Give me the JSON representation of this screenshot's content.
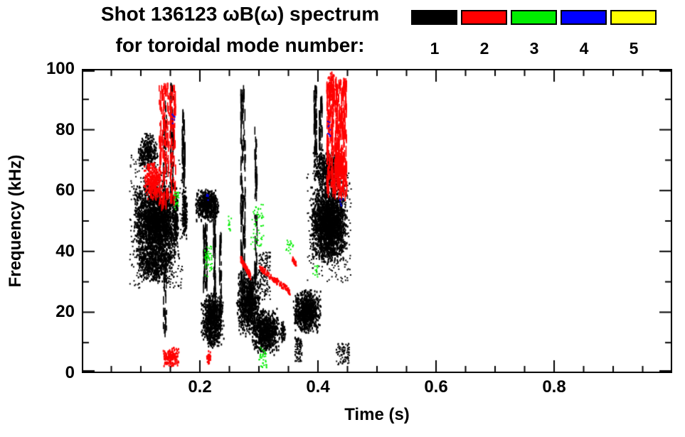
{
  "header": {
    "title_line1": "Shot 136123 ωB(ω) spectrum",
    "title_line2": "for toroidal mode number:"
  },
  "legend": {
    "items": [
      {
        "label": "1",
        "color": "#000000"
      },
      {
        "label": "2",
        "color": "#ff0000"
      },
      {
        "label": "3",
        "color": "#00ee00"
      },
      {
        "label": "4",
        "color": "#0000ff"
      },
      {
        "label": "5",
        "color": "#ffff00"
      }
    ]
  },
  "chart_data": {
    "type": "scatter",
    "title": "Shot 136123 ωB(ω) spectrum for toroidal mode number: 1 2 3 4 5",
    "xlabel": "Time (s)",
    "ylabel": "Frequency (kHz)",
    "xlim": [
      0,
      1
    ],
    "ylim": [
      0,
      100
    ],
    "xticks": [
      0.2,
      0.4,
      0.6,
      0.8
    ],
    "xtick_labels": [
      "0.2",
      "0.4",
      "0.6",
      "0.8"
    ],
    "yticks": [
      0,
      20,
      40,
      60,
      80,
      100
    ],
    "ytick_labels": [
      "0",
      "20",
      "40",
      "60",
      "80",
      "100"
    ],
    "x_minor_step": 0.05,
    "y_minor_step": 10,
    "grid": false,
    "legend_position": "top-right",
    "series": [
      {
        "name": "mode 1",
        "color": "#000000",
        "clusters": [
          {
            "t": [
              0.085,
              0.165
            ],
            "f": [
              36,
              64
            ],
            "n": 2400,
            "style": "blob"
          },
          {
            "t": [
              0.09,
              0.155
            ],
            "f": [
              30,
              42
            ],
            "n": 500,
            "style": "blob"
          },
          {
            "t": [
              0.08,
              0.17
            ],
            "f": [
              28,
              72
            ],
            "n": 350,
            "style": "sparse"
          },
          {
            "t": [
              0.093,
              0.128
            ],
            "f": [
              67,
              78
            ],
            "n": 260,
            "style": "blob"
          },
          {
            "t": [
              0.105,
              0.12
            ],
            "f": [
              76,
              79
            ],
            "n": 40,
            "style": "sparse"
          },
          {
            "t": [
              0.137,
              0.143
            ],
            "f": [
              10,
              88
            ],
            "n": 90,
            "style": "streak"
          },
          {
            "t": [
              0.149,
              0.154
            ],
            "f": [
              55,
              95
            ],
            "n": 70,
            "style": "streak"
          },
          {
            "t": [
              0.155,
              0.162
            ],
            "f": [
              40,
              60
            ],
            "n": 120,
            "style": "blob"
          },
          {
            "t": [
              0.168,
              0.178
            ],
            "f": [
              44,
              62
            ],
            "n": 160,
            "style": "blob"
          },
          {
            "t": [
              0.169,
              0.174
            ],
            "f": [
              62,
              86
            ],
            "n": 50,
            "style": "streak"
          },
          {
            "t": [
              0.19,
              0.232
            ],
            "f": [
              50,
              61
            ],
            "n": 550,
            "style": "blob"
          },
          {
            "t": [
              0.2,
              0.24
            ],
            "f": [
              8,
              27
            ],
            "n": 750,
            "style": "blob"
          },
          {
            "t": [
              0.205,
              0.212
            ],
            "f": [
              28,
              48
            ],
            "n": 60,
            "style": "streak"
          },
          {
            "t": [
              0.222,
              0.226
            ],
            "f": [
              18,
              58
            ],
            "n": 60,
            "style": "streak"
          },
          {
            "t": [
              0.232,
              0.236
            ],
            "f": [
              15,
              45
            ],
            "n": 40,
            "style": "streak"
          },
          {
            "t": [
              0.268,
              0.276
            ],
            "f": [
              25,
              93
            ],
            "n": 130,
            "style": "streak"
          },
          {
            "t": [
              0.26,
              0.302
            ],
            "f": [
              12,
              34
            ],
            "n": 850,
            "style": "blob"
          },
          {
            "t": [
              0.285,
              0.335
            ],
            "f": [
              6,
              22
            ],
            "n": 800,
            "style": "blob"
          },
          {
            "t": [
              0.292,
              0.296
            ],
            "f": [
              30,
              80
            ],
            "n": 60,
            "style": "streak"
          },
          {
            "t": [
              0.298,
              0.318
            ],
            "f": [
              24,
              40
            ],
            "n": 140,
            "style": "sparse"
          },
          {
            "t": [
              0.335,
              0.345
            ],
            "f": [
              10,
              18
            ],
            "n": 60,
            "style": "blob"
          },
          {
            "t": [
              0.355,
              0.405
            ],
            "f": [
              13,
              28
            ],
            "n": 850,
            "style": "blob"
          },
          {
            "t": [
              0.36,
              0.372
            ],
            "f": [
              4,
              12
            ],
            "n": 90,
            "style": "sparse"
          },
          {
            "t": [
              0.385,
              0.45
            ],
            "f": [
              36,
              62
            ],
            "n": 2200,
            "style": "blob"
          },
          {
            "t": [
              0.39,
              0.442
            ],
            "f": [
              60,
              74
            ],
            "n": 550,
            "style": "blob"
          },
          {
            "t": [
              0.392,
              0.397
            ],
            "f": [
              72,
              94
            ],
            "n": 60,
            "style": "streak"
          },
          {
            "t": [
              0.401,
              0.406
            ],
            "f": [
              70,
              90
            ],
            "n": 45,
            "style": "streak"
          },
          {
            "t": [
              0.43,
              0.452
            ],
            "f": [
              3,
              10
            ],
            "n": 90,
            "style": "sparse"
          },
          {
            "t": [
              0.38,
              0.455
            ],
            "f": [
              30,
              70
            ],
            "n": 250,
            "style": "sparse"
          }
        ]
      },
      {
        "name": "mode 2",
        "color": "#ff0000",
        "clusters": [
          {
            "t": [
              0.103,
              0.135
            ],
            "f": [
              57,
              70
            ],
            "n": 320,
            "style": "blob"
          },
          {
            "t": [
              0.13,
              0.158
            ],
            "f": [
              55,
              95
            ],
            "n": 200,
            "style": "streak"
          },
          {
            "t": [
              0.135,
              0.165
            ],
            "f": [
              2,
              9
            ],
            "n": 160,
            "style": "blob"
          },
          {
            "t": [
              0.21,
              0.218
            ],
            "f": [
              3,
              8
            ],
            "n": 35,
            "style": "blob"
          },
          {
            "t": [
              0.268,
              0.285
            ],
            "f": [
              38,
              32
            ],
            "n": 120,
            "style": "diag",
            "jitter": 2
          },
          {
            "t": [
              0.3,
              0.352
            ],
            "f": [
              35,
              27
            ],
            "n": 130,
            "style": "diag",
            "jitter": 2
          },
          {
            "t": [
              0.355,
              0.362
            ],
            "f": [
              38,
              36
            ],
            "n": 30,
            "style": "diag",
            "jitter": 1.5
          },
          {
            "t": [
              0.414,
              0.448
            ],
            "f": [
              58,
              96
            ],
            "n": 420,
            "style": "streak"
          },
          {
            "t": [
              0.428,
              0.443
            ],
            "f": [
              62,
              75
            ],
            "n": 200,
            "style": "blob"
          },
          {
            "t": [
              0.415,
              0.428
            ],
            "f": [
              88,
              100
            ],
            "n": 90,
            "style": "blob"
          }
        ]
      },
      {
        "name": "mode 3",
        "color": "#00ee00",
        "clusters": [
          {
            "t": [
              0.155,
              0.163
            ],
            "f": [
              54,
              60
            ],
            "n": 25,
            "style": "sparse"
          },
          {
            "t": [
              0.207,
              0.22
            ],
            "f": [
              32,
              42
            ],
            "n": 45,
            "style": "sparse"
          },
          {
            "t": [
              0.247,
              0.253
            ],
            "f": [
              47,
              52
            ],
            "n": 12,
            "style": "sparse"
          },
          {
            "t": [
              0.285,
              0.307
            ],
            "f": [
              41,
              56
            ],
            "n": 55,
            "style": "sparse"
          },
          {
            "t": [
              0.298,
              0.313
            ],
            "f": [
              2,
              9
            ],
            "n": 35,
            "style": "sparse"
          },
          {
            "t": [
              0.345,
              0.357
            ],
            "f": [
              39,
              44
            ],
            "n": 18,
            "style": "sparse"
          },
          {
            "t": [
              0.39,
              0.4
            ],
            "f": [
              31,
              36
            ],
            "n": 12,
            "style": "sparse"
          }
        ]
      },
      {
        "name": "mode 4",
        "color": "#0000ff",
        "clusters": [
          {
            "t": [
              0.152,
              0.157
            ],
            "f": [
              82,
              86
            ],
            "n": 7,
            "style": "sparse"
          },
          {
            "t": [
              0.21,
              0.214
            ],
            "f": [
              56,
              59
            ],
            "n": 5,
            "style": "sparse"
          },
          {
            "t": [
              0.414,
              0.42
            ],
            "f": [
              78,
              83
            ],
            "n": 9,
            "style": "sparse"
          },
          {
            "t": [
              0.436,
              0.441
            ],
            "f": [
              55,
              58
            ],
            "n": 6,
            "style": "sparse"
          }
        ]
      },
      {
        "name": "mode 5",
        "color": "#ffff00",
        "clusters": []
      }
    ]
  }
}
